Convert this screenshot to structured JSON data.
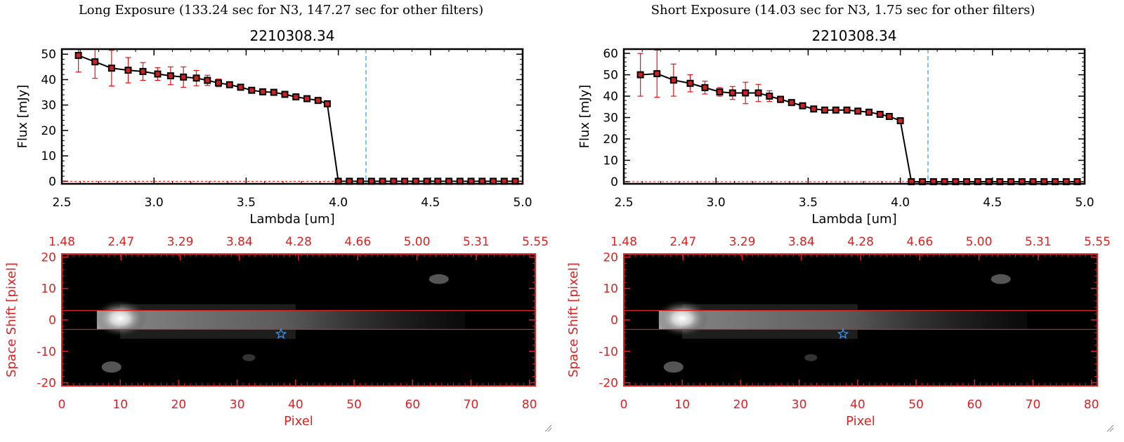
{
  "panels": [
    {
      "exposure_title": "Long Exposure (133.24 sec for N3, 147.27 sec for other filters)",
      "spectrum": {
        "type": "line",
        "title": "2210308.34",
        "xlabel": "Lambda [um]",
        "ylabel": "Flux [mJy]",
        "xlim": [
          2.5,
          5.0
        ],
        "ylim": [
          -1,
          52
        ],
        "xticks": [
          "2.5",
          "3.0",
          "3.5",
          "4.0",
          "4.5",
          "5.0"
        ],
        "yticks": [
          "0",
          "10",
          "20",
          "30",
          "40",
          "50"
        ],
        "ytick_values": [
          0,
          10,
          20,
          30,
          40,
          50
        ],
        "vline_x": 4.15,
        "x": [
          2.59,
          2.68,
          2.77,
          2.86,
          2.94,
          3.02,
          3.09,
          3.16,
          3.23,
          3.29,
          3.35,
          3.41,
          3.47,
          3.53,
          3.59,
          3.65,
          3.71,
          3.77,
          3.83,
          3.89,
          3.94,
          4.0,
          4.06,
          4.12,
          4.18,
          4.24,
          4.3,
          4.36,
          4.42,
          4.48,
          4.54,
          4.6,
          4.66,
          4.72,
          4.78,
          4.84,
          4.9,
          4.96
        ],
        "y": [
          49.5,
          47,
          44.5,
          43.7,
          43.2,
          42.2,
          41.5,
          41,
          40.6,
          39.7,
          38.7,
          38,
          37,
          35.8,
          35.2,
          35,
          34.2,
          33.2,
          32.5,
          31.8,
          30.5,
          0,
          0,
          0,
          0,
          0,
          0,
          0,
          0,
          0,
          0,
          0,
          0,
          0,
          0,
          0,
          0,
          0
        ],
        "yerr": [
          6.5,
          6.5,
          7,
          5,
          3.5,
          2.5,
          3.5,
          4,
          3,
          2,
          1.5,
          1,
          0.8,
          0.7,
          0.6,
          0.6,
          0.6,
          0.5,
          0.5,
          0.5,
          0.5,
          0,
          0,
          0,
          0,
          0,
          0,
          0,
          0,
          0,
          0,
          0,
          0,
          0,
          0,
          0,
          0,
          0
        ],
        "colors": {
          "line": "#000000",
          "marker_edge": "#000000",
          "marker_fill": "#cc2222",
          "errorbar": "#ee1111",
          "vline": "#3399dd",
          "zero_line": "#ee1111"
        }
      },
      "image": {
        "type": "heatmap",
        "xlabel": "Pixel",
        "ylabel": "Space Shift [pixel]",
        "xlim": [
          0,
          81
        ],
        "ylim": [
          -21,
          21
        ],
        "xticks": [
          "0",
          "10",
          "20",
          "30",
          "40",
          "50",
          "60",
          "70",
          "80"
        ],
        "xtick_values": [
          0,
          10,
          20,
          30,
          40,
          50,
          60,
          70,
          80
        ],
        "yticks": [
          "20",
          "10",
          "0",
          "-10",
          "-20"
        ],
        "ytick_values": [
          20,
          10,
          0,
          -10,
          -20
        ],
        "top_xticks": [
          "1.48",
          "2.47",
          "3.29",
          "3.84",
          "4.28",
          "4.66",
          "5.00",
          "5.31",
          "5.55"
        ],
        "aperture_lines": [
          3,
          -3
        ],
        "star_marker": {
          "x": 37.5,
          "y": -4.5
        },
        "colors": {
          "axis": "#dd2222",
          "star": "#3399ff",
          "background": "#000000"
        }
      }
    },
    {
      "exposure_title": "Short Exposure (14.03 sec for N3, 1.75 sec for other filters)",
      "spectrum": {
        "type": "line",
        "title": "2210308.34",
        "xlabel": "Lambda [um]",
        "ylabel": "Flux [mJy]",
        "xlim": [
          2.5,
          5.0
        ],
        "ylim": [
          -1,
          62
        ],
        "xticks": [
          "2.5",
          "3.0",
          "3.5",
          "4.0",
          "4.5",
          "5.0"
        ],
        "yticks": [
          "0",
          "10",
          "20",
          "30",
          "40",
          "50",
          "60"
        ],
        "ytick_values": [
          0,
          10,
          20,
          30,
          40,
          50,
          60
        ],
        "vline_x": 4.15,
        "x": [
          2.59,
          2.68,
          2.77,
          2.86,
          2.94,
          3.02,
          3.09,
          3.16,
          3.23,
          3.29,
          3.35,
          3.41,
          3.47,
          3.53,
          3.59,
          3.65,
          3.71,
          3.77,
          3.83,
          3.89,
          3.94,
          4.0,
          4.06,
          4.12,
          4.18,
          4.24,
          4.3,
          4.36,
          4.42,
          4.48,
          4.54,
          4.6,
          4.66,
          4.72,
          4.78,
          4.84,
          4.9,
          4.96
        ],
        "y": [
          50,
          50.5,
          47.5,
          46,
          44,
          42,
          41.5,
          41.5,
          41.5,
          40,
          38.5,
          37,
          35.5,
          34,
          33.5,
          33.5,
          33.5,
          33,
          32.5,
          31.5,
          30.5,
          28.5,
          0,
          0,
          0,
          0,
          0,
          0,
          0,
          0,
          0,
          0,
          0,
          0,
          0,
          0,
          0,
          0
        ],
        "yerr": [
          10,
          11,
          7.5,
          4,
          3,
          2,
          3,
          5,
          4,
          2.5,
          1.5,
          1,
          0.8,
          0.7,
          0.6,
          0.6,
          0.6,
          0.5,
          0.5,
          0.5,
          0.5,
          0.5,
          0,
          0,
          0,
          0,
          0,
          0,
          0,
          0,
          0,
          0,
          0,
          0,
          0,
          0,
          0,
          0
        ],
        "colors": {
          "line": "#000000",
          "marker_edge": "#000000",
          "marker_fill": "#cc2222",
          "errorbar": "#ee1111",
          "vline": "#3399dd",
          "zero_line": "#ee1111"
        }
      },
      "image": {
        "type": "heatmap",
        "xlabel": "Pixel",
        "ylabel": "Space Shift [pixel]",
        "xlim": [
          0,
          81
        ],
        "ylim": [
          -21,
          21
        ],
        "xticks": [
          "0",
          "10",
          "20",
          "30",
          "40",
          "50",
          "60",
          "70",
          "80"
        ],
        "xtick_values": [
          0,
          10,
          20,
          30,
          40,
          50,
          60,
          70,
          80
        ],
        "yticks": [
          "20",
          "10",
          "0",
          "-10",
          "-20"
        ],
        "ytick_values": [
          20,
          10,
          0,
          -10,
          -20
        ],
        "top_xticks": [
          "1.48",
          "2.47",
          "3.29",
          "3.84",
          "4.28",
          "4.66",
          "5.00",
          "5.31",
          "5.55"
        ],
        "aperture_lines": [
          3,
          -3
        ],
        "star_marker": {
          "x": 37.5,
          "y": -4.5
        },
        "colors": {
          "axis": "#dd2222",
          "star": "#3399ff",
          "background": "#000000"
        }
      }
    }
  ]
}
